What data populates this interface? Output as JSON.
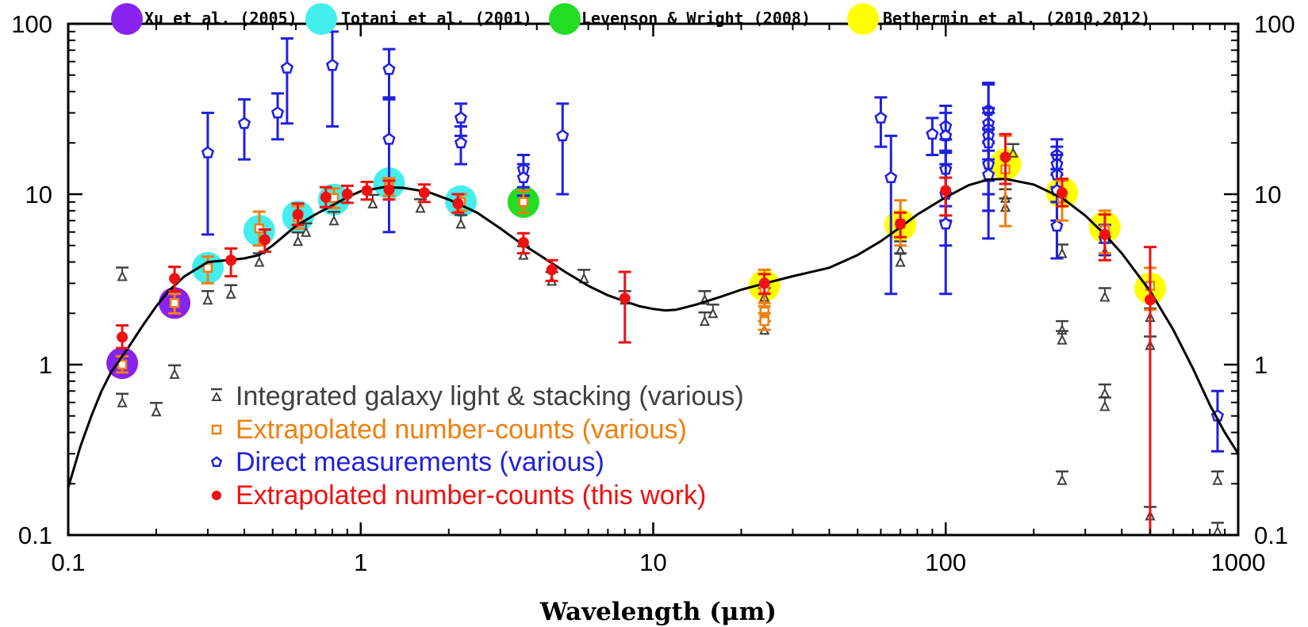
{
  "chart_data": {
    "type": "scatter",
    "title": "",
    "xlabel": "Wavelength (μm)",
    "ylabel": "",
    "x_scale": "log",
    "y_scale": "log",
    "xlim": [
      0.1,
      1000
    ],
    "ylim": [
      0.1,
      100
    ],
    "x_ticks": [
      {
        "v": 0.1,
        "label": "0.1"
      },
      {
        "v": 1,
        "label": "1"
      },
      {
        "v": 10,
        "label": "10"
      },
      {
        "v": 100,
        "label": "100"
      },
      {
        "v": 1000,
        "label": "1000"
      }
    ],
    "y_ticks": [
      {
        "v": 0.1,
        "label": "0.1"
      },
      {
        "v": 1,
        "label": "1"
      },
      {
        "v": 10,
        "label": "10"
      },
      {
        "v": 100,
        "label": "100"
      }
    ],
    "colors": {
      "integrated": "#404040",
      "extrapolated_various": "#f07f10",
      "direct": "#2020e0",
      "this_work": "#ee1111",
      "model": "#000000",
      "xu": "#8822ee",
      "totani": "#44eeee",
      "levenson": "#22dd22",
      "bethermin": "#ffff00"
    },
    "top_legend": [
      {
        "label": "Xu et al. (2005)",
        "color": "#8822ee"
      },
      {
        "label": "Totani et al. (2001)",
        "color": "#44eeee"
      },
      {
        "label": "Levenson & Wright (2008)",
        "color": "#22dd22"
      },
      {
        "label": "Bethermin et al. (2010,2012)",
        "color": "#ffff00"
      }
    ],
    "bottom_legend": [
      {
        "label": "Integrated galaxy light & stacking (various)",
        "color": "#404040",
        "marker": "lower-limit"
      },
      {
        "label": "Extrapolated number-counts (various)",
        "color": "#f07f10",
        "marker": "square"
      },
      {
        "label": "Direct measurements (various)",
        "color": "#2020e0",
        "marker": "star"
      },
      {
        "label": "Extrapolated number-counts (this work)",
        "color": "#ee1111",
        "marker": "circle"
      }
    ],
    "series": [
      {
        "name": "Model EBL",
        "kind": "line",
        "x": [
          0.1,
          0.11,
          0.12,
          0.13,
          0.14,
          0.16,
          0.18,
          0.2,
          0.22,
          0.25,
          0.3,
          0.35,
          0.4,
          0.45,
          0.5,
          0.6,
          0.7,
          0.8,
          0.9,
          1.0,
          1.2,
          1.4,
          1.7,
          2.0,
          2.5,
          3.0,
          3.5,
          4.0,
          5.0,
          6.0,
          7.0,
          8.0,
          9.0,
          10,
          11,
          12,
          14,
          17,
          20,
          25,
          30,
          40,
          50,
          60,
          70,
          80,
          100,
          120,
          140,
          160,
          200,
          250,
          300,
          350,
          400,
          500,
          600,
          700,
          800,
          900,
          1000
        ],
        "y": [
          0.19,
          0.33,
          0.5,
          0.7,
          0.9,
          1.25,
          1.7,
          2.2,
          2.7,
          3.3,
          4.0,
          4.1,
          4.2,
          4.4,
          5.0,
          6.5,
          7.6,
          8.6,
          9.6,
          10.4,
          11.0,
          10.9,
          10.3,
          9.3,
          7.8,
          6.3,
          5.2,
          4.5,
          3.5,
          2.9,
          2.55,
          2.35,
          2.2,
          2.12,
          2.08,
          2.1,
          2.25,
          2.5,
          2.75,
          3.05,
          3.3,
          3.7,
          4.4,
          5.3,
          6.4,
          7.6,
          9.6,
          11.3,
          12.2,
          12.3,
          11.4,
          9.5,
          7.5,
          5.8,
          4.5,
          2.7,
          1.6,
          0.95,
          0.58,
          0.4,
          0.3
        ]
      },
      {
        "name": "Top-legend highlight circles",
        "kind": "circles",
        "points": [
          {
            "x": 0.153,
            "y": 1.02,
            "c": "xu"
          },
          {
            "x": 0.231,
            "y": 2.3,
            "c": "xu"
          },
          {
            "x": 0.3,
            "y": 3.7,
            "c": "totani"
          },
          {
            "x": 0.45,
            "y": 6.1,
            "c": "totani"
          },
          {
            "x": 0.61,
            "y": 7.4,
            "c": "totani"
          },
          {
            "x": 0.81,
            "y": 9.3,
            "c": "totani"
          },
          {
            "x": 1.25,
            "y": 11.6,
            "c": "totani"
          },
          {
            "x": 2.2,
            "y": 9.1,
            "c": "totani"
          },
          {
            "x": 3.6,
            "y": 9.0,
            "c": "levenson"
          },
          {
            "x": 24,
            "y": 2.9,
            "c": "bethermin"
          },
          {
            "x": 70,
            "y": 6.6,
            "c": "bethermin"
          },
          {
            "x": 160,
            "y": 15,
            "c": "bethermin"
          },
          {
            "x": 250,
            "y": 10.2,
            "c": "bethermin"
          },
          {
            "x": 350,
            "y": 6.4,
            "c": "bethermin"
          },
          {
            "x": 500,
            "y": 2.8,
            "c": "bethermin"
          }
        ]
      },
      {
        "name": "Integrated galaxy light & stacking (various)",
        "kind": "lower-limits",
        "points": [
          {
            "x": 0.153,
            "y": 3.3
          },
          {
            "x": 0.153,
            "y": 0.6
          },
          {
            "x": 0.2,
            "y": 0.53
          },
          {
            "x": 0.231,
            "y": 0.88
          },
          {
            "x": 0.3,
            "y": 2.4
          },
          {
            "x": 0.36,
            "y": 2.6
          },
          {
            "x": 0.45,
            "y": 4.0
          },
          {
            "x": 0.61,
            "y": 5.3
          },
          {
            "x": 0.65,
            "y": 6.0
          },
          {
            "x": 0.81,
            "y": 7.0
          },
          {
            "x": 1.1,
            "y": 8.8
          },
          {
            "x": 1.6,
            "y": 8.3
          },
          {
            "x": 2.2,
            "y": 6.7
          },
          {
            "x": 3.6,
            "y": 4.4
          },
          {
            "x": 4.5,
            "y": 3.1
          },
          {
            "x": 5.8,
            "y": 3.2
          },
          {
            "x": 8.0,
            "y": 2.4
          },
          {
            "x": 15,
            "y": 2.4
          },
          {
            "x": 15,
            "y": 1.8
          },
          {
            "x": 16,
            "y": 2.0
          },
          {
            "x": 24,
            "y": 2.5
          },
          {
            "x": 24,
            "y": 1.6
          },
          {
            "x": 70,
            "y": 4.7
          },
          {
            "x": 70,
            "y": 4.0
          },
          {
            "x": 160,
            "y": 8.4
          },
          {
            "x": 160,
            "y": 9.5
          },
          {
            "x": 170,
            "y": 17.5
          },
          {
            "x": 250,
            "y": 4.5
          },
          {
            "x": 250,
            "y": 1.6
          },
          {
            "x": 250,
            "y": 1.4
          },
          {
            "x": 250,
            "y": 0.21
          },
          {
            "x": 350,
            "y": 2.5
          },
          {
            "x": 350,
            "y": 0.68
          },
          {
            "x": 350,
            "y": 0.57
          },
          {
            "x": 350,
            "y": 4.6
          },
          {
            "x": 500,
            "y": 1.9
          },
          {
            "x": 500,
            "y": 1.3
          },
          {
            "x": 500,
            "y": 0.13
          },
          {
            "x": 850,
            "y": 0.21
          },
          {
            "x": 850,
            "y": 0.105
          }
        ]
      },
      {
        "name": "Extrapolated number-counts (various)",
        "kind": "squares",
        "points": [
          {
            "x": 0.153,
            "y": 1.0,
            "lo": 0.9,
            "hi": 1.12
          },
          {
            "x": 0.231,
            "y": 2.3,
            "lo": 2.0,
            "hi": 2.6
          },
          {
            "x": 0.3,
            "y": 3.7,
            "lo": 3.0,
            "hi": 4.3
          },
          {
            "x": 0.45,
            "y": 6.3,
            "lo": 5.0,
            "hi": 7.9
          },
          {
            "x": 0.61,
            "y": 7.3,
            "lo": 6.3,
            "hi": 8.5
          },
          {
            "x": 0.81,
            "y": 9.5,
            "lo": 8.3,
            "hi": 10.8
          },
          {
            "x": 1.25,
            "y": 11.0,
            "lo": 9.8,
            "hi": 12.4
          },
          {
            "x": 2.2,
            "y": 9.0,
            "lo": 8.0,
            "hi": 10.0
          },
          {
            "x": 3.6,
            "y": 9.0,
            "lo": 7.8,
            "hi": 10.5
          },
          {
            "x": 24,
            "y": 2.8,
            "lo": 2.2,
            "hi": 3.6
          },
          {
            "x": 24,
            "y": 2.05,
            "lo": 1.8,
            "hi": 2.3
          },
          {
            "x": 24,
            "y": 1.8,
            "lo": 1.6,
            "hi": 2.0
          },
          {
            "x": 70,
            "y": 6.7,
            "lo": 5.0,
            "hi": 9.2
          },
          {
            "x": 160,
            "y": 14.0,
            "lo": 6.5,
            "hi": 22.0
          },
          {
            "x": 250,
            "y": 9.5,
            "lo": 7.0,
            "hi": 12.0
          },
          {
            "x": 350,
            "y": 6.2,
            "lo": 4.5,
            "hi": 8.0
          },
          {
            "x": 500,
            "y": 2.9,
            "lo": 2.1,
            "hi": 3.7
          }
        ]
      },
      {
        "name": "Direct measurements (various)",
        "kind": "pentagons",
        "points": [
          {
            "x": 0.3,
            "y": 17.5,
            "lo": 5.8,
            "hi": 30
          },
          {
            "x": 0.4,
            "y": 26,
            "lo": 16,
            "hi": 36
          },
          {
            "x": 0.52,
            "y": 30,
            "lo": 21,
            "hi": 39
          },
          {
            "x": 0.56,
            "y": 55,
            "lo": 26,
            "hi": 82
          },
          {
            "x": 0.8,
            "y": 57,
            "lo": 25,
            "hi": 90
          },
          {
            "x": 1.25,
            "y": 54,
            "lo": 37,
            "hi": 71
          },
          {
            "x": 1.25,
            "y": 21,
            "lo": 6,
            "hi": 36
          },
          {
            "x": 2.2,
            "y": 28,
            "lo": 22,
            "hi": 34
          },
          {
            "x": 2.2,
            "y": 20,
            "lo": 15,
            "hi": 25
          },
          {
            "x": 3.6,
            "y": 14,
            "lo": 11,
            "hi": 17
          },
          {
            "x": 3.6,
            "y": 12.5,
            "lo": 9.8,
            "hi": 15
          },
          {
            "x": 4.9,
            "y": 22,
            "lo": 10,
            "hi": 34
          },
          {
            "x": 60,
            "y": 28,
            "lo": 19,
            "hi": 37
          },
          {
            "x": 65,
            "y": 12.5,
            "lo": 2.6,
            "hi": 22
          },
          {
            "x": 90,
            "y": 22.5,
            "lo": 17,
            "hi": 28
          },
          {
            "x": 100,
            "y": 25,
            "lo": 18,
            "hi": 33
          },
          {
            "x": 100,
            "y": 22,
            "lo": 15,
            "hi": 30
          },
          {
            "x": 100,
            "y": 14,
            "lo": 7,
            "hi": 21
          },
          {
            "x": 100,
            "y": 10,
            "lo": 2.6,
            "hi": 17.5
          },
          {
            "x": 100,
            "y": 6.7,
            "lo": 5,
            "hi": 8.5
          },
          {
            "x": 140,
            "y": 31,
            "lo": 20,
            "hi": 45
          },
          {
            "x": 140,
            "y": 26,
            "lo": 8,
            "hi": 44
          },
          {
            "x": 140,
            "y": 24,
            "lo": 16,
            "hi": 32
          },
          {
            "x": 140,
            "y": 22,
            "lo": 12,
            "hi": 32
          },
          {
            "x": 140,
            "y": 20,
            "lo": 10,
            "hi": 30
          },
          {
            "x": 140,
            "y": 15,
            "lo": 5.5,
            "hi": 24
          },
          {
            "x": 140,
            "y": 13,
            "lo": 8,
            "hi": 18
          },
          {
            "x": 240,
            "y": 17,
            "lo": 13,
            "hi": 21
          },
          {
            "x": 240,
            "y": 15,
            "lo": 11,
            "hi": 19
          },
          {
            "x": 240,
            "y": 13,
            "lo": 9,
            "hi": 17
          },
          {
            "x": 240,
            "y": 10.5,
            "lo": 7,
            "hi": 14
          },
          {
            "x": 240,
            "y": 6.5,
            "lo": 4.2,
            "hi": 9
          },
          {
            "x": 350,
            "y": 5.5,
            "lo": 4.4,
            "hi": 6.6
          },
          {
            "x": 850,
            "y": 0.5,
            "lo": 0.31,
            "hi": 0.7
          }
        ]
      },
      {
        "name": "Extrapolated number-counts (this work)",
        "kind": "dots",
        "points": [
          {
            "x": 0.153,
            "y": 1.45,
            "lo": 1.25,
            "hi": 1.7
          },
          {
            "x": 0.231,
            "y": 3.2,
            "lo": 2.7,
            "hi": 3.75
          },
          {
            "x": 0.36,
            "y": 4.1,
            "lo": 3.3,
            "hi": 4.8
          },
          {
            "x": 0.47,
            "y": 5.4,
            "lo": 4.6,
            "hi": 6.2
          },
          {
            "x": 0.61,
            "y": 7.6,
            "lo": 6.6,
            "hi": 8.8
          },
          {
            "x": 0.76,
            "y": 9.6,
            "lo": 8.4,
            "hi": 11.0
          },
          {
            "x": 0.9,
            "y": 10.0,
            "lo": 8.9,
            "hi": 11.2
          },
          {
            "x": 1.05,
            "y": 10.5,
            "lo": 9.3,
            "hi": 11.8
          },
          {
            "x": 1.25,
            "y": 10.6,
            "lo": 9.3,
            "hi": 12.0
          },
          {
            "x": 1.65,
            "y": 10.2,
            "lo": 9.0,
            "hi": 11.4
          },
          {
            "x": 2.15,
            "y": 8.8,
            "lo": 7.8,
            "hi": 10.0
          },
          {
            "x": 3.6,
            "y": 5.2,
            "lo": 4.5,
            "hi": 5.9
          },
          {
            "x": 4.5,
            "y": 3.6,
            "lo": 3.1,
            "hi": 4.1
          },
          {
            "x": 8.0,
            "y": 2.45,
            "lo": 1.35,
            "hi": 3.5
          },
          {
            "x": 24,
            "y": 3.0,
            "lo": 2.6,
            "hi": 3.4
          },
          {
            "x": 70,
            "y": 6.7,
            "lo": 5.6,
            "hi": 7.8
          },
          {
            "x": 100,
            "y": 10.5,
            "lo": 7.5,
            "hi": 12.5
          },
          {
            "x": 160,
            "y": 16.5,
            "lo": 11.5,
            "hi": 22.5
          },
          {
            "x": 250,
            "y": 10.2,
            "lo": 8.5,
            "hi": 12.3
          },
          {
            "x": 350,
            "y": 5.8,
            "lo": 4.1,
            "hi": 7.6
          },
          {
            "x": 500,
            "y": 2.4,
            "lo": 0.1,
            "hi": 4.9
          }
        ]
      }
    ]
  }
}
